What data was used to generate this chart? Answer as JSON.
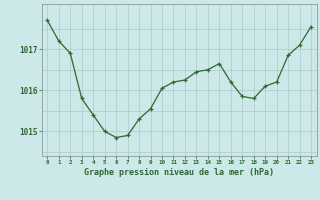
{
  "hours": [
    0,
    1,
    2,
    3,
    4,
    5,
    6,
    7,
    8,
    9,
    10,
    11,
    12,
    13,
    14,
    15,
    16,
    17,
    18,
    19,
    20,
    21,
    22,
    23
  ],
  "pressure": [
    1017.7,
    1017.2,
    1016.9,
    1015.8,
    1015.4,
    1015.0,
    1014.85,
    1014.9,
    1015.3,
    1015.55,
    1016.05,
    1016.2,
    1016.25,
    1016.45,
    1016.5,
    1016.65,
    1016.2,
    1015.85,
    1015.8,
    1016.1,
    1016.2,
    1016.85,
    1017.1,
    1017.55
  ],
  "line_color": "#2d6a2d",
  "marker_color": "#2d6a2d",
  "bg_color": "#cce8e8",
  "grid_color": "#aacccc",
  "axis_label_color": "#2d6a2d",
  "tick_label_color": "#2d6a2d",
  "xlabel": "Graphe pression niveau de la mer (hPa)",
  "yticks": [
    1015,
    1016,
    1017
  ],
  "ylim": [
    1014.4,
    1018.1
  ],
  "xlim": [
    -0.5,
    23.5
  ],
  "bottom_bar_color": "#5a8a3a",
  "bottom_bar_height": 0.12
}
